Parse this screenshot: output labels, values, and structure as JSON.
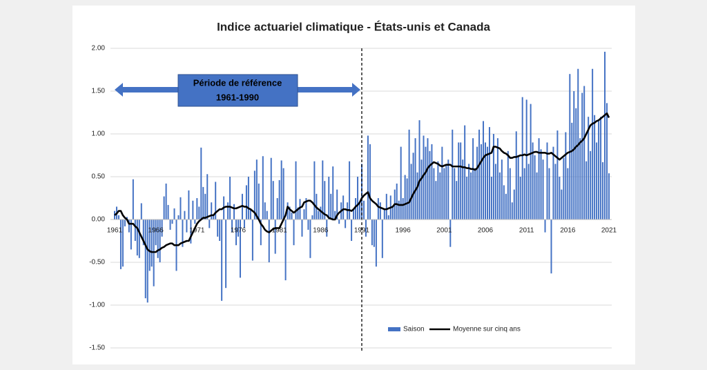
{
  "chart_data": {
    "type": "bar",
    "title": "Indice actuariel climatique - États-unis et Canada",
    "annotations": [
      "Période de référence",
      "1961-1990"
    ],
    "ylim": [
      -1.5,
      2
    ],
    "yticks": [
      {
        "value": -1.5,
        "label": "-1.50"
      },
      {
        "value": -1,
        "label": "-1.00"
      },
      {
        "value": -0.5,
        "label": "-0.50"
      },
      {
        "value": 0,
        "label": "0.00"
      },
      {
        "value": 0.5,
        "label": "0.50"
      },
      {
        "value": 1,
        "label": "1.00"
      },
      {
        "value": 1.5,
        "label": "1.50"
      },
      {
        "value": 2,
        "label": "2.00"
      }
    ],
    "grid": true,
    "legend": "lower right",
    "categories": [
      "1961",
      null,
      null,
      null,
      null,
      null,
      null,
      null,
      null,
      null,
      null,
      null,
      null,
      null,
      null,
      null,
      null,
      null,
      null,
      null,
      "1966",
      null,
      null,
      null,
      null,
      null,
      null,
      null,
      null,
      null,
      null,
      null,
      null,
      null,
      null,
      null,
      null,
      null,
      null,
      null,
      "1971",
      null,
      null,
      null,
      null,
      null,
      null,
      null,
      null,
      null,
      null,
      null,
      null,
      null,
      null,
      null,
      null,
      null,
      null,
      null,
      "1976",
      null,
      null,
      null,
      null,
      null,
      null,
      null,
      null,
      null,
      null,
      null,
      null,
      null,
      null,
      null,
      null,
      null,
      null,
      null,
      "1981",
      null,
      null,
      null,
      null,
      null,
      null,
      null,
      null,
      null,
      null,
      null,
      null,
      null,
      null,
      null,
      null,
      null,
      null,
      null,
      "1986",
      null,
      null,
      null,
      null,
      null,
      null,
      null,
      null,
      null,
      null,
      null,
      null,
      null,
      null,
      null,
      null,
      null,
      null,
      null,
      "1991",
      null,
      null,
      null,
      null,
      null,
      null,
      null,
      null,
      null,
      null,
      null,
      null,
      null,
      null,
      null,
      null,
      null,
      null,
      null,
      "1996",
      null,
      null,
      null,
      null,
      null,
      null,
      null,
      null,
      null,
      null,
      null,
      null,
      null,
      null,
      null,
      null,
      null,
      null,
      null,
      "2001",
      null,
      null,
      null,
      null,
      null,
      null,
      null,
      null,
      null,
      null,
      null,
      null,
      null,
      null,
      null,
      null,
      null,
      null,
      null,
      "2006",
      null,
      null,
      null,
      null,
      null,
      null,
      null,
      null,
      null,
      null,
      null,
      null,
      null,
      null,
      null,
      null,
      null,
      null,
      null,
      "2011",
      null,
      null,
      null,
      null,
      null,
      null,
      null,
      null,
      null,
      null,
      null,
      null,
      null,
      null,
      null,
      null,
      null,
      null,
      null,
      "2016",
      null,
      null,
      null,
      null,
      null,
      null,
      null,
      null,
      null,
      null,
      null,
      null,
      null,
      null,
      null,
      null,
      null,
      null,
      null,
      "2021"
    ],
    "series": [
      {
        "name": "Saison",
        "type": "bar",
        "color": "#4472c4",
        "values": [
          0.1,
          0.15,
          0.05,
          -0.58,
          -0.55,
          -0.08,
          0.03,
          -0.15,
          -0.35,
          0.47,
          -0.25,
          -0.42,
          -0.45,
          0.19,
          -0.3,
          -0.92,
          -0.97,
          -0.6,
          -0.55,
          -0.78,
          -0.3,
          -0.45,
          -0.5,
          -0.2,
          0.27,
          0.42,
          0.17,
          -0.12,
          -0.05,
          0.13,
          -0.6,
          0.05,
          0.26,
          -0.32,
          0.1,
          -0.15,
          0.34,
          -0.28,
          0.22,
          -0.05,
          0.25,
          0.15,
          0.84,
          0.38,
          0.3,
          0.53,
          -0.1,
          0.2,
          0.05,
          0.44,
          -0.2,
          -0.25,
          -0.95,
          0.27,
          -0.8,
          0.2,
          0.5,
          -0.15,
          0.18,
          -0.3,
          -0.2,
          -0.68,
          0.3,
          -0.1,
          0.4,
          0.5,
          0.12,
          -0.48,
          0.57,
          0.7,
          0.42,
          -0.3,
          0.74,
          0.2,
          0.1,
          -0.5,
          0.72,
          0.45,
          -0.4,
          0.25,
          0.46,
          0.69,
          0.6,
          -0.71,
          0.2,
          0.15,
          0.08,
          -0.3,
          0.68,
          0.14,
          0.24,
          -0.2,
          0.12,
          0.25,
          -0.12,
          -0.45,
          0.05,
          0.68,
          0.3,
          0.1,
          0.15,
          0.69,
          0.45,
          -0.2,
          0.5,
          0.3,
          0.62,
          0.1,
          0.35,
          -0.05,
          0.2,
          0.28,
          -0.1,
          0.2,
          0.68,
          -0.25,
          0.12,
          0.25,
          0.5,
          0.2,
          0.65,
          0.22,
          -0.2,
          0.98,
          0.88,
          -0.3,
          -0.32,
          -0.55,
          0.25,
          0.2,
          -0.45,
          0.12,
          0.3,
          0.05,
          0.28,
          0.15,
          0.35,
          0.42,
          0.22,
          0.85,
          0.25,
          0.52,
          0.48,
          1.05,
          0.65,
          0.78,
          0.95,
          0.55,
          1.16,
          0.7,
          0.98,
          0.85,
          0.95,
          0.8,
          0.88,
          0.6,
          0.45,
          0.68,
          0.55,
          0.85,
          0.6,
          0.65,
          0.7,
          -0.32,
          1.05,
          0.6,
          0.45,
          0.9,
          0.9,
          0.7,
          1.1,
          0.5,
          0.65,
          0.55,
          0.95,
          0.6,
          0.85,
          1.05,
          0.88,
          1.15,
          0.9,
          0.85,
          1.08,
          0.5,
          1.0,
          0.65,
          0.95,
          0.55,
          0.7,
          0.4,
          0.3,
          0.8,
          0.6,
          0.2,
          0.35,
          1.03,
          0.75,
          0.5,
          1.43,
          0.6,
          1.4,
          0.65,
          1.35,
          0.9,
          0.75,
          0.55,
          0.95,
          0.82,
          0.7,
          -0.15,
          0.9,
          0.6,
          -0.63,
          0.85,
          0.65,
          1.04,
          0.5,
          0.35,
          0.72,
          1.02,
          0.6,
          1.7,
          1.13,
          1.5,
          1.3,
          1.76,
          0.95,
          1.48,
          1.56,
          0.68,
          1.2,
          0.8,
          1.76,
          1.22,
          0.9,
          1.15,
          1.2,
          0.67,
          1.96,
          1.36,
          0.54
        ]
      },
      {
        "name": "Moyenne sur cinq ans",
        "type": "line",
        "color": "#000000",
        "values": [
          0.05,
          0.07,
          0.1,
          0.1,
          0.05,
          0.02,
          0,
          -0.05,
          -0.05,
          -0.05,
          -0.08,
          -0.1,
          -0.15,
          -0.2,
          -0.25,
          -0.3,
          -0.35,
          -0.37,
          -0.38,
          -0.38,
          -0.38,
          -0.36,
          -0.35,
          -0.33,
          -0.32,
          -0.3,
          -0.29,
          -0.28,
          -0.28,
          -0.3,
          -0.3,
          -0.3,
          -0.28,
          -0.27,
          -0.26,
          -0.25,
          -0.25,
          -0.2,
          -0.15,
          -0.1,
          -0.05,
          -0.02,
          0,
          0.02,
          0.02,
          0.03,
          0.04,
          0.05,
          0.05,
          0.08,
          0.1,
          0.12,
          0.12,
          0.14,
          0.15,
          0.15,
          0.15,
          0.14,
          0.13,
          0.13,
          0.14,
          0.15,
          0.16,
          0.15,
          0.15,
          0.13,
          0.12,
          0.1,
          0.08,
          0.04,
          0,
          -0.05,
          -0.08,
          -0.12,
          -0.14,
          -0.15,
          -0.13,
          -0.11,
          -0.1,
          -0.1,
          -0.1,
          -0.05,
          0,
          0.05,
          0.15,
          0.12,
          0.1,
          0.08,
          0.1,
          0.12,
          0.14,
          0.15,
          0.2,
          0.21,
          0.22,
          0.22,
          0.2,
          0.17,
          0.14,
          0.12,
          0.1,
          0.08,
          0.06,
          0.05,
          0.02,
          0.01,
          0,
          0,
          0.05,
          0.08,
          0.1,
          0.12,
          0.12,
          0.11,
          0.11,
          0.1,
          0.12,
          0.15,
          0.17,
          0.2,
          0.25,
          0.28,
          0.3,
          0.32,
          0.25,
          0.22,
          0.2,
          0.18,
          0.15,
          0.14,
          0.13,
          0.12,
          0.12,
          0.13,
          0.14,
          0.15,
          0.18,
          0.18,
          0.17,
          0.17,
          0.17,
          0.18,
          0.19,
          0.2,
          0.25,
          0.3,
          0.34,
          0.38,
          0.45,
          0.48,
          0.52,
          0.55,
          0.6,
          0.63,
          0.65,
          0.67,
          0.66,
          0.65,
          0.63,
          0.62,
          0.63,
          0.64,
          0.64,
          0.64,
          0.62,
          0.62,
          0.62,
          0.62,
          0.62,
          0.61,
          0.61,
          0.6,
          0.6,
          0.59,
          0.59,
          0.58,
          0.6,
          0.64,
          0.68,
          0.72,
          0.75,
          0.76,
          0.77,
          0.78,
          0.85,
          0.85,
          0.84,
          0.83,
          0.8,
          0.78,
          0.77,
          0.75,
          0.72,
          0.72,
          0.73,
          0.73,
          0.74,
          0.75,
          0.75,
          0.76,
          0.75,
          0.76,
          0.77,
          0.78,
          0.79,
          0.79,
          0.78,
          0.78,
          0.78,
          0.78,
          0.77,
          0.77,
          0.78,
          0.76,
          0.74,
          0.72,
          0.7,
          0.72,
          0.74,
          0.76,
          0.78,
          0.79,
          0.8,
          0.82,
          0.85,
          0.87,
          0.9,
          0.92,
          0.95,
          1.0,
          1.05,
          1.1,
          1.12,
          1.13,
          1.15,
          1.16,
          1.18,
          1.2,
          1.22,
          1.24,
          1.19
        ]
      }
    ]
  }
}
